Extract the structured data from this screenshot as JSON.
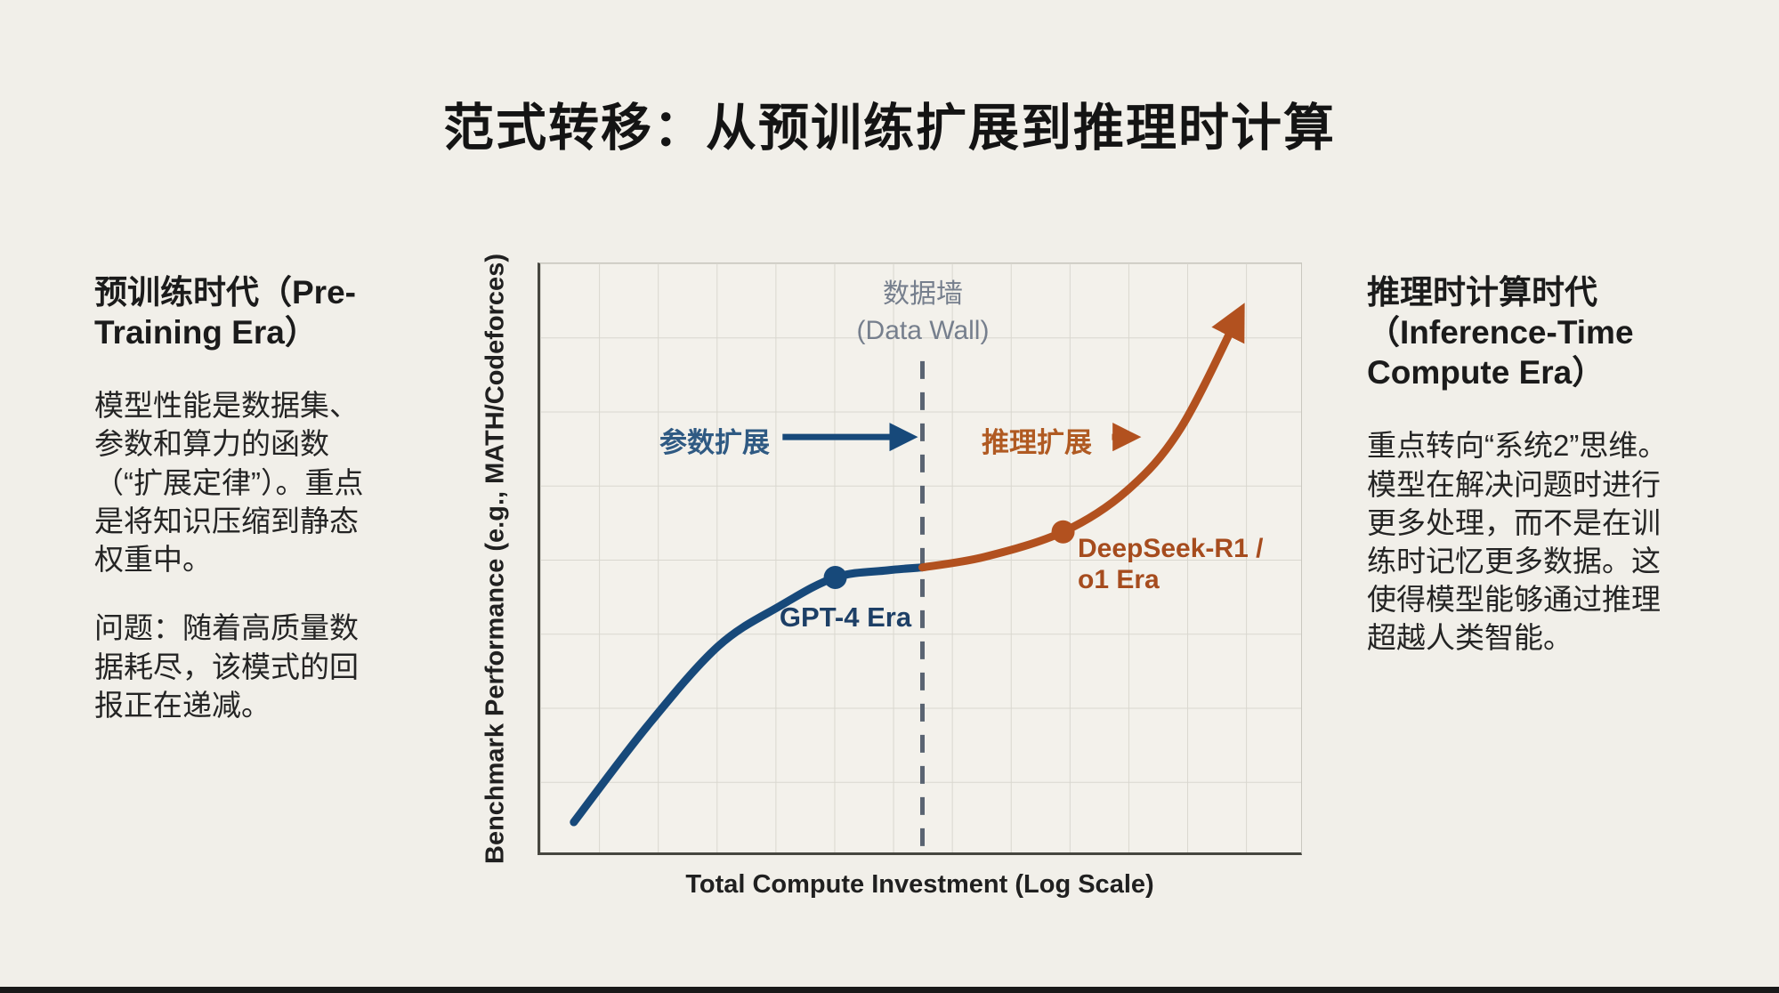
{
  "page": {
    "background": "#f1efe9",
    "title": "范式转移：从预训练扩展到推理时计算"
  },
  "left_panel": {
    "heading": "预训练时代（Pre-Training Era）",
    "body": "模型性能是数据集、参数和算力的函数（“扩展定律”）。重点是将知识压缩到静态权重中。",
    "problem": "问题：随着高质量数据耗尽，该模式的回报正在递减。"
  },
  "right_panel": {
    "heading": "推理时计算时代（Inference-Time Compute Era）",
    "body": "重点转向“系统2”思维。模型在解决问题时进行更多处理，而不是在训练时记忆更多数据。这使得模型能够通过推理超越人类智能。"
  },
  "chart_data": {
    "type": "line",
    "title": "",
    "xlabel": "Total Compute Investment (Log Scale)",
    "ylabel": "Benchmark Performance (e.g., MATH/Codeforces)",
    "x_axis": {
      "scale": "log (conceptual, no ticks)",
      "range_frac": [
        0,
        1
      ],
      "ticks": []
    },
    "y_axis": {
      "units": "conceptual performance 0-100",
      "range": [
        0,
        100
      ],
      "ticks": []
    },
    "grid": true,
    "legend": "none (inline labels)",
    "series": [
      {
        "name": "Pre-Training Scaling (参数扩展)",
        "color": "#17497A",
        "points_frac": [
          [
            0.044,
            5.7
          ],
          [
            0.14,
            21.9
          ],
          [
            0.233,
            35.4
          ],
          [
            0.314,
            42.2
          ],
          [
            0.386,
            47.0
          ],
          [
            0.454,
            48.2
          ],
          [
            0.5,
            48.7
          ]
        ],
        "marker_point": [
          0.386,
          47.0
        ],
        "marker_label": "GPT-4 Era",
        "arrow_end": false
      },
      {
        "name": "Inference Scaling (推理扩展)",
        "color": "#B2511F",
        "points_frac": [
          [
            0.5,
            48.7
          ],
          [
            0.582,
            50.5
          ],
          [
            0.684,
            54.7
          ],
          [
            0.768,
            61.7
          ],
          [
            0.838,
            72.2
          ],
          [
            0.915,
            91.7
          ]
        ],
        "marker_point": [
          0.684,
          54.7
        ],
        "marker_label": "DeepSeek-R1 / o1 Era",
        "arrow_end": true
      }
    ],
    "annotations": {
      "data_wall": {
        "zh": "数据墙",
        "en": "(Data Wall)",
        "x_frac": 0.5,
        "y1_frac": 0.165,
        "line_style": "dashed",
        "line_color": "#5A6472",
        "label_color": "#767F8D"
      },
      "param_arrow": {
        "label": "参数扩展",
        "x1_frac": 0.317,
        "x2_frac": 0.483,
        "y_frac_from_top": 0.293,
        "color": "#17497A"
      },
      "infer_arrow": {
        "label": "推理扩展",
        "x1_frac": 0.748,
        "x2_frac": 0.775,
        "y_frac_from_top": 0.293,
        "color": "#B2511F"
      }
    }
  }
}
